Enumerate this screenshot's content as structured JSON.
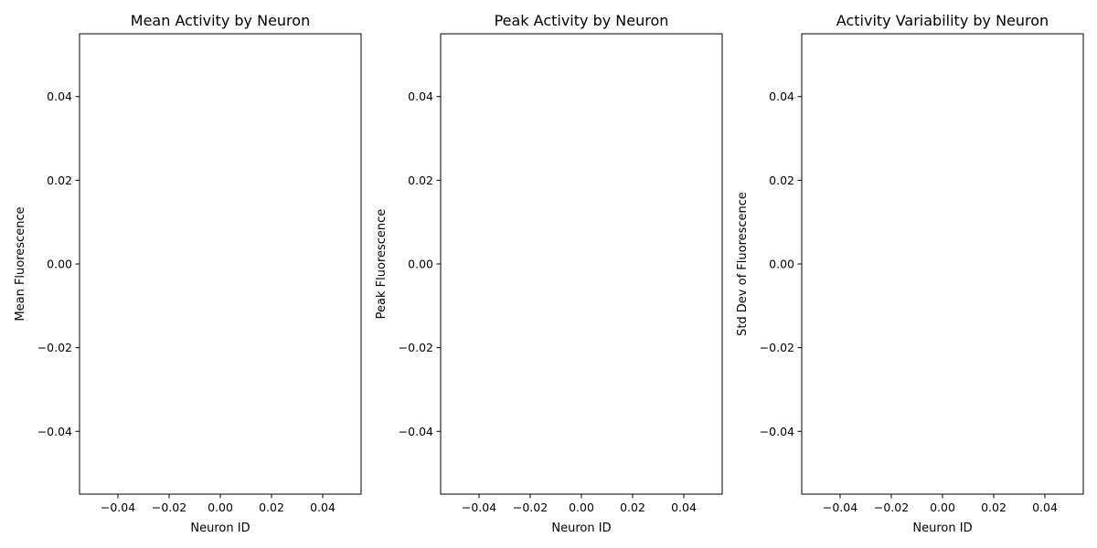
{
  "chart_data": [
    {
      "type": "scatter",
      "title": "Mean Activity by Neuron",
      "xlabel": "Neuron ID",
      "ylabel": "Mean Fluorescence",
      "xlim": [
        -0.055,
        0.055
      ],
      "ylim": [
        -0.055,
        0.055
      ],
      "xticks": [
        -0.04,
        -0.02,
        0.0,
        0.02,
        0.04
      ],
      "xtick_labels": [
        "−0.04",
        "−0.02",
        "0.00",
        "0.02",
        "0.04"
      ],
      "yticks": [
        -0.04,
        -0.02,
        0.0,
        0.02,
        0.04
      ],
      "ytick_labels": [
        "−0.04",
        "−0.02",
        "0.00",
        "0.02",
        "0.04"
      ],
      "grid": false,
      "series": []
    },
    {
      "type": "scatter",
      "title": "Peak Activity by Neuron",
      "xlabel": "Neuron ID",
      "ylabel": "Peak Fluorescence",
      "xlim": [
        -0.055,
        0.055
      ],
      "ylim": [
        -0.055,
        0.055
      ],
      "xticks": [
        -0.04,
        -0.02,
        0.0,
        0.02,
        0.04
      ],
      "xtick_labels": [
        "−0.04",
        "−0.02",
        "0.00",
        "0.02",
        "0.04"
      ],
      "yticks": [
        -0.04,
        -0.02,
        0.0,
        0.02,
        0.04
      ],
      "ytick_labels": [
        "−0.04",
        "−0.02",
        "0.00",
        "0.02",
        "0.04"
      ],
      "grid": false,
      "series": []
    },
    {
      "type": "scatter",
      "title": "Activity Variability by Neuron",
      "xlabel": "Neuron ID",
      "ylabel": "Std Dev of Fluorescence",
      "xlim": [
        -0.055,
        0.055
      ],
      "ylim": [
        -0.055,
        0.055
      ],
      "xticks": [
        -0.04,
        -0.02,
        0.0,
        0.02,
        0.04
      ],
      "xtick_labels": [
        "−0.04",
        "−0.02",
        "0.00",
        "0.02",
        "0.04"
      ],
      "yticks": [
        -0.04,
        -0.02,
        0.0,
        0.02,
        0.04
      ],
      "ytick_labels": [
        "−0.04",
        "−0.02",
        "0.00",
        "0.02",
        "0.04"
      ],
      "grid": false,
      "series": []
    }
  ]
}
